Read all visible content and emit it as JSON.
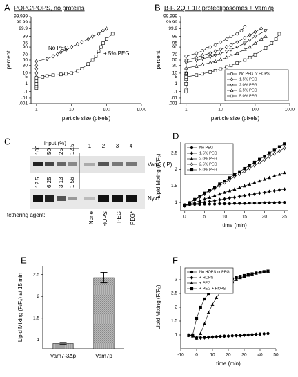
{
  "chart_data": [
    {
      "panel_label": "A",
      "type": "scatter",
      "title": "POPC/POPS, no proteins",
      "xlabel": "particle size (pixels)",
      "ylabel": "percent",
      "xscale": "log",
      "yscale": "probability",
      "legend": "direct",
      "xlim": [
        0.7,
        1000
      ],
      "xticks": [
        1,
        10,
        100,
        1000
      ],
      "ylim": [
        0.001,
        99.999
      ],
      "yticks": [
        {
          "value": 0.001,
          "label": ".001"
        },
        {
          "value": 0.01,
          "label": ".01"
        },
        {
          "value": 0.1,
          "label": ".1"
        },
        1,
        5,
        10,
        30,
        50,
        70,
        90,
        95,
        99,
        99.9,
        99.99,
        99.999
      ],
      "series": [
        {
          "name": "No PEG",
          "color": "#000",
          "marker": "diamond",
          "filled": false,
          "x": [
            1,
            1,
            1,
            1,
            1,
            1,
            1,
            1,
            2,
            3,
            4,
            5,
            7,
            10,
            15,
            20,
            30,
            40,
            60,
            80,
            100
          ],
          "values": [
            0.5,
            1,
            2,
            5,
            10,
            20,
            30,
            45,
            55,
            65,
            72,
            78,
            84,
            90,
            94,
            96,
            98,
            99,
            99.5,
            99.8,
            99.9
          ]
        },
        {
          "name": "+ 5% PEG",
          "color": "#000",
          "marker": "square",
          "filled": false,
          "x": [
            1,
            1,
            1,
            1,
            1,
            1.5,
            2,
            3,
            5,
            7,
            10,
            15,
            20,
            30,
            40,
            50,
            60,
            70,
            80,
            100,
            150
          ],
          "values": [
            0.3,
            0.5,
            1,
            2,
            4,
            5,
            6,
            7,
            8,
            9,
            10,
            14,
            20,
            35,
            50,
            65,
            80,
            90,
            95,
            98,
            99.5
          ]
        }
      ]
    },
    {
      "panel_label": "B",
      "type": "scatter",
      "title": "B-F. 2Q + 1R proteoliposomes + Vam7p",
      "xlabel": "particle size (pixels)",
      "ylabel": "percent",
      "xscale": "log",
      "yscale": "probability",
      "legend": "lower right",
      "xlim": [
        0.7,
        1000
      ],
      "xticks": [
        1,
        10,
        100,
        1000
      ],
      "ylim": [
        0.001,
        99.999
      ],
      "yticks": [
        {
          "value": 0.001,
          "label": ".001"
        },
        {
          "value": 0.01,
          "label": ".01"
        },
        {
          "value": 0.1,
          "label": ".1"
        },
        1,
        5,
        10,
        30,
        50,
        70,
        90,
        95,
        99,
        99.9,
        99.99,
        99.999
      ],
      "series": [
        {
          "name": "No PEG or HOPS",
          "color": "#000",
          "marker": "circle",
          "filled": false,
          "x": [
            1,
            1,
            1,
            1,
            2,
            3,
            4,
            5,
            7,
            10,
            15,
            20,
            30,
            40,
            50
          ],
          "values": [
            0.2,
            1,
            10,
            65,
            75,
            82,
            87,
            90,
            93,
            96,
            98,
            99,
            99.5,
            99.8,
            99.95
          ]
        },
        {
          "name": "1.5% PEG",
          "color": "#000",
          "marker": "diamond",
          "filled": false,
          "x": [
            1,
            1,
            1,
            1,
            2,
            3,
            5,
            7,
            10,
            15,
            20,
            30,
            50,
            70,
            100,
            150
          ],
          "values": [
            0.1,
            1,
            10,
            50,
            60,
            68,
            75,
            80,
            85,
            90,
            93,
            96,
            98.5,
            99.3,
            99.7,
            99.9
          ]
        },
        {
          "name": "2.0% PEG",
          "color": "#000",
          "marker": "tri-down",
          "filled": false,
          "x": [
            1,
            1,
            1,
            1,
            2,
            3,
            5,
            7,
            10,
            15,
            20,
            30,
            50,
            70,
            100,
            200
          ],
          "values": [
            0.1,
            1,
            10,
            40,
            48,
            55,
            62,
            68,
            74,
            80,
            85,
            90,
            95,
            97.5,
            99,
            99.8
          ]
        },
        {
          "name": "2.5% PEG",
          "color": "#000",
          "marker": "tri-up",
          "filled": false,
          "x": [
            1,
            1,
            1,
            1,
            2,
            3,
            5,
            7,
            10,
            15,
            20,
            30,
            50,
            70,
            100,
            150,
            200
          ],
          "values": [
            0.1,
            1,
            10,
            22,
            28,
            33,
            40,
            45,
            52,
            60,
            66,
            75,
            85,
            90,
            95,
            98,
            99
          ]
        },
        {
          "name": "5.0% PEG",
          "color": "#000",
          "marker": "square",
          "filled": false,
          "x": [
            1,
            1,
            1,
            1,
            2,
            3,
            5,
            7,
            10,
            15,
            20,
            30,
            50,
            70,
            100,
            200,
            300,
            400,
            500
          ],
          "values": [
            0.1,
            1,
            3,
            5,
            7,
            9,
            12,
            15,
            19,
            25,
            30,
            38,
            50,
            60,
            70,
            88,
            95,
            98,
            99.5
          ]
        }
      ]
    },
    {
      "panel_label": "D",
      "type": "line",
      "xlabel": "time (min)",
      "ylabel": "Lipid Mixing (F/F₀)",
      "legend": "upper left",
      "xlim": [
        -1,
        26
      ],
      "xticks": [
        0,
        5,
        10,
        15,
        20,
        25
      ],
      "ylim": [
        0.75,
        2.85
      ],
      "yticks": [
        1,
        1.5,
        2,
        2.5
      ],
      "x": [
        0,
        1.25,
        2.5,
        3.75,
        5,
        6.25,
        7.5,
        8.75,
        10,
        11.25,
        12.5,
        13.75,
        15,
        16.25,
        17.5,
        18.75,
        20,
        21.25,
        22.5,
        23.75,
        25
      ],
      "series": [
        {
          "name": "No PEG",
          "color": "#000",
          "marker": "circle",
          "filled": true,
          "values": [
            0.93,
            0.93,
            0.94,
            0.94,
            0.95,
            0.95,
            0.95,
            0.96,
            0.96,
            0.96,
            0.97,
            0.97,
            0.97,
            0.98,
            0.98,
            0.98,
            0.99,
            0.99,
            0.99,
            1.0,
            1.0
          ]
        },
        {
          "name": "1.5% PEG",
          "color": "#000",
          "marker": "diamond",
          "filled": true,
          "values": [
            0.9,
            0.93,
            0.95,
            0.98,
            1.0,
            1.03,
            1.05,
            1.08,
            1.1,
            1.13,
            1.15,
            1.18,
            1.2,
            1.23,
            1.25,
            1.28,
            1.3,
            1.33,
            1.35,
            1.38,
            1.4
          ]
        },
        {
          "name": "2.0% PEG",
          "color": "#000",
          "marker": "tri-up",
          "filled": true,
          "values": [
            0.9,
            0.95,
            1.0,
            1.05,
            1.1,
            1.15,
            1.2,
            1.25,
            1.3,
            1.35,
            1.4,
            1.45,
            1.5,
            1.55,
            1.6,
            1.65,
            1.7,
            1.75,
            1.8,
            1.85,
            1.9
          ]
        },
        {
          "name": "2.5% PEG",
          "color": "#000",
          "marker": "diamond",
          "filled": false,
          "values": [
            0.9,
            0.99,
            1.08,
            1.16,
            1.25,
            1.34,
            1.42,
            1.51,
            1.6,
            1.69,
            1.78,
            1.86,
            1.95,
            2.04,
            2.12,
            2.21,
            2.3,
            2.39,
            2.48,
            2.56,
            2.65
          ]
        },
        {
          "name": "5.0% PEG",
          "color": "#000",
          "marker": "square",
          "filled": true,
          "values": [
            0.9,
            0.99,
            1.09,
            1.18,
            1.28,
            1.37,
            1.46,
            1.56,
            1.65,
            1.75,
            1.84,
            1.93,
            2.03,
            2.12,
            2.22,
            2.31,
            2.4,
            2.5,
            2.59,
            2.69,
            2.78
          ]
        }
      ]
    },
    {
      "panel_label": "E",
      "type": "bar",
      "ylabel": "Lipid Mixing (F/F₀) at 15 min",
      "color": "#b8b8b8",
      "categories": [
        "Vam7-3Δp",
        "Vam7p"
      ],
      "values": [
        0.92,
        2.43
      ],
      "errors": [
        0.02,
        0.12
      ],
      "ylim": [
        0.8,
        2.7
      ],
      "yticks": [
        1,
        1.5,
        2,
        2.5
      ]
    },
    {
      "panel_label": "F",
      "type": "line",
      "xlabel": "time (min)",
      "ylabel": "Lipid Mixing (F/F₀)",
      "legend": "upper left",
      "xlim": [
        -10,
        50
      ],
      "xticks": [
        -10,
        0,
        10,
        20,
        30,
        40,
        50
      ],
      "ylim": [
        0.5,
        3.5
      ],
      "yticks": [
        1,
        1.5,
        2,
        2.5,
        3
      ],
      "x": [
        -5,
        -2.5,
        0,
        2.5,
        5,
        7.5,
        10,
        12.5,
        15,
        17.5,
        20,
        22.5,
        25,
        27.5,
        30,
        32.5,
        35,
        37.5,
        40,
        42.5,
        45
      ],
      "series": [
        {
          "name": "No HOPS or PEG",
          "color": "#000",
          "marker": "circle",
          "filled": true,
          "values": [
            1.0,
            0.98,
            0.9,
            0.9,
            0.91,
            0.92,
            0.93,
            0.94,
            0.95,
            0.96,
            0.96,
            0.97,
            0.98,
            0.99,
            1.0,
            1.0,
            1.01,
            1.02,
            1.03,
            1.04,
            1.05
          ]
        },
        {
          "name": "+ HOPS",
          "color": "#000",
          "marker": "diamond",
          "filled": true,
          "values": [
            0.99,
            0.97,
            0.88,
            0.89,
            0.9,
            0.91,
            0.92,
            0.93,
            0.94,
            0.95,
            0.96,
            0.97,
            0.98,
            0.98,
            0.99,
            1.0,
            1.01,
            1.02,
            1.03,
            1.04,
            1.05
          ]
        },
        {
          "name": "+ PEG",
          "color": "#000",
          "marker": "tri-up",
          "filled": true,
          "values": [
            0.98,
            0.96,
            0.88,
            1.05,
            1.4,
            1.8,
            2.1,
            2.35,
            2.55,
            2.7,
            2.82,
            2.92,
            3.0,
            3.07,
            3.12,
            3.16,
            3.2,
            3.23,
            3.26,
            3.28,
            3.3
          ]
        },
        {
          "name": "+ PEG + HOPS",
          "color": "#000",
          "marker": "square",
          "filled": true,
          "values": [
            1.0,
            1.0,
            1.6,
            2.0,
            2.3,
            2.5,
            2.65,
            2.75,
            2.85,
            2.92,
            2.98,
            3.03,
            3.08,
            3.12,
            3.15,
            3.18,
            3.21,
            3.24,
            3.27,
            3.29,
            3.31
          ]
        }
      ]
    }
  ],
  "gel": {
    "panel_label": "C",
    "input_label": "input (%)",
    "top_lanes": [
      "100",
      "50",
      "25",
      "12.5"
    ],
    "ip_lanes": [
      "1",
      "2",
      "3",
      "4"
    ],
    "top_band_label": "Vam3 (IP)",
    "bottom_lanes": [
      "12.5",
      "6.25",
      "3.13",
      "1.56"
    ],
    "bottom_band_label": "Nyv1",
    "agent_label": "tethering agent:",
    "agents": [
      "None",
      "HOPS",
      "PEG",
      "PEG*"
    ]
  }
}
